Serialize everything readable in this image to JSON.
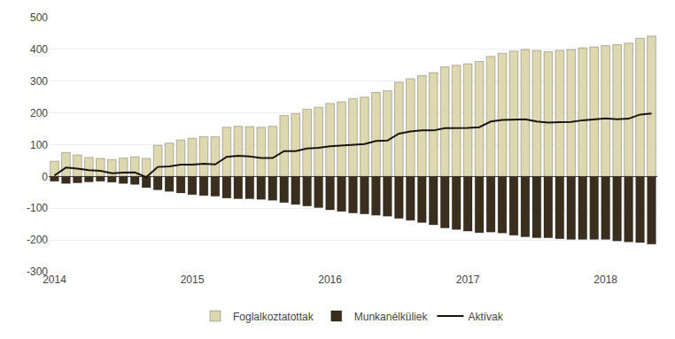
{
  "chart_data": {
    "type": "bar",
    "categories": [
      "2014",
      null,
      null,
      null,
      null,
      null,
      null,
      null,
      null,
      null,
      null,
      null,
      "2015",
      null,
      null,
      null,
      null,
      null,
      null,
      null,
      null,
      null,
      null,
      null,
      "2016",
      null,
      null,
      null,
      null,
      null,
      null,
      null,
      null,
      null,
      null,
      null,
      "2017",
      null,
      null,
      null,
      null,
      null,
      null,
      null,
      null,
      null,
      null,
      null,
      "2018",
      null,
      null,
      null,
      null
    ],
    "series": [
      {
        "name": "Foglalkoztatottak",
        "type": "bar",
        "color": "#ddd8b0",
        "values": [
          48,
          75,
          68,
          60,
          57,
          53,
          58,
          62,
          57,
          98,
          105,
          115,
          120,
          125,
          125,
          155,
          158,
          157,
          155,
          158,
          192,
          198,
          212,
          218,
          230,
          235,
          245,
          250,
          265,
          270,
          297,
          308,
          318,
          327,
          345,
          350,
          355,
          362,
          378,
          388,
          395,
          400,
          397,
          393,
          397,
          400,
          405,
          408,
          412,
          415,
          420,
          435,
          442
        ]
      },
      {
        "name": "Munkanélküliek",
        "type": "bar",
        "color": "#3a2e1e",
        "values": [
          -15,
          -22,
          -20,
          -17,
          -15,
          -18,
          -22,
          -25,
          -35,
          -42,
          -47,
          -52,
          -57,
          -60,
          -62,
          -68,
          -70,
          -70,
          -72,
          -75,
          -82,
          -88,
          -93,
          -98,
          -105,
          -110,
          -115,
          -118,
          -122,
          -125,
          -132,
          -138,
          -145,
          -152,
          -162,
          -167,
          -172,
          -177,
          -175,
          -178,
          -185,
          -190,
          -193,
          -193,
          -196,
          -198,
          -198,
          -198,
          -198,
          -203,
          -206,
          -208,
          -213
        ]
      },
      {
        "name": "Aktívak",
        "type": "line",
        "color": "#1a1408",
        "values": [
          3,
          28,
          25,
          20,
          18,
          10,
          12,
          13,
          -2,
          30,
          32,
          37,
          37,
          40,
          38,
          62,
          65,
          63,
          58,
          58,
          80,
          80,
          88,
          90,
          95,
          97,
          100,
          102,
          112,
          113,
          135,
          142,
          145,
          145,
          152,
          152,
          153,
          155,
          173,
          178,
          178,
          180,
          173,
          170,
          171,
          172,
          177,
          180,
          183,
          180,
          182,
          195,
          198
        ]
      }
    ],
    "ylim": [
      -300,
      500
    ],
    "yticks": [
      -300,
      -200,
      -100,
      0,
      100,
      200,
      300,
      400,
      500
    ],
    "grid": true,
    "legend": "bottom"
  }
}
